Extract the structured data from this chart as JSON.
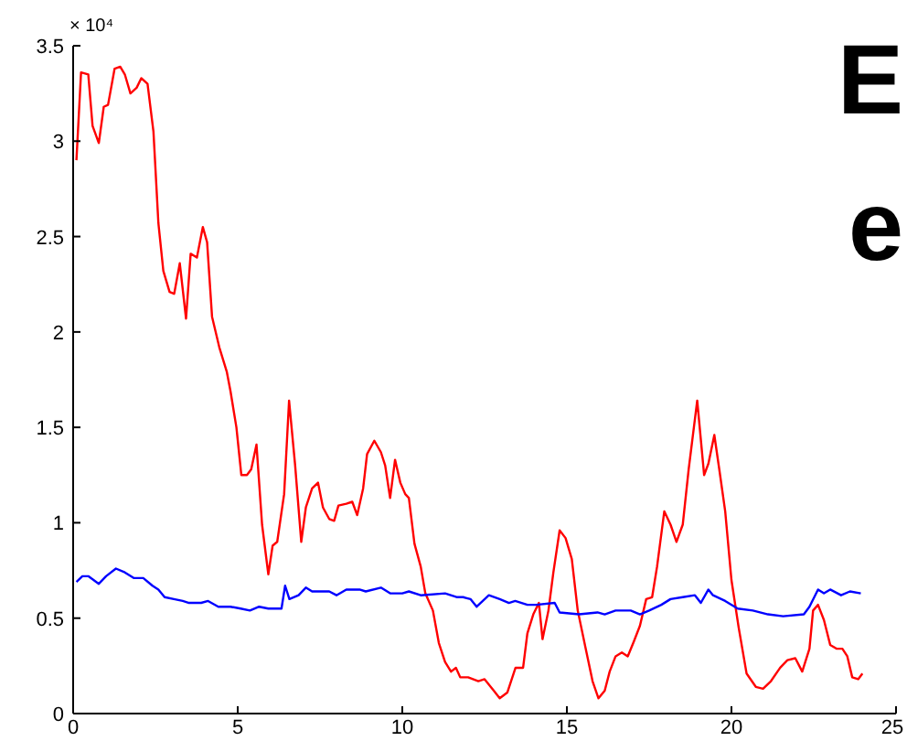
{
  "chart_data": {
    "type": "line",
    "title": "E\ne",
    "annotations": [
      "× 10⁴"
    ],
    "xlim": [
      0,
      25
    ],
    "xticks": [
      0,
      5,
      10,
      15,
      20,
      25
    ],
    "ylim": [
      0,
      3.5
    ],
    "yticks": [
      0,
      0.5,
      1,
      1.5,
      2,
      2.5,
      3,
      3.5
    ],
    "marker": "none",
    "line_style": "solid",
    "series": [
      {
        "color": "#ff0000",
        "x": [
          0.1,
          0.24,
          0.46,
          0.59,
          0.78,
          0.93,
          1.06,
          1.26,
          1.43,
          1.57,
          1.74,
          1.93,
          2.07,
          2.26,
          2.44,
          2.59,
          2.74,
          2.93,
          3.07,
          3.24,
          3.43,
          3.57,
          3.76,
          3.94,
          4.07,
          4.22,
          4.44,
          4.67,
          4.78,
          4.96,
          5.11,
          5.28,
          5.41,
          5.57,
          5.74,
          5.93,
          6.06,
          6.2,
          6.41,
          6.56,
          6.74,
          6.93,
          7.07,
          7.26,
          7.44,
          7.59,
          7.78,
          7.93,
          8.06,
          8.3,
          8.48,
          8.63,
          8.81,
          8.93,
          9.15,
          9.35,
          9.48,
          9.63,
          9.78,
          9.94,
          10.09,
          10.2,
          10.37,
          10.56,
          10.7,
          10.93,
          11.11,
          11.3,
          11.48,
          11.63,
          11.76,
          12.0,
          12.31,
          12.5,
          12.78,
          12.96,
          13.19,
          13.44,
          13.67,
          13.8,
          13.98,
          14.15,
          14.26,
          14.44,
          14.59,
          14.78,
          14.96,
          15.15,
          15.33,
          15.56,
          15.78,
          15.96,
          16.15,
          16.3,
          16.48,
          16.67,
          16.85,
          17.04,
          17.22,
          17.41,
          17.59,
          17.74,
          17.96,
          18.15,
          18.33,
          18.52,
          18.7,
          18.96,
          19.17,
          19.3,
          19.48,
          19.63,
          19.81,
          20.0,
          20.22,
          20.46,
          20.74,
          20.96,
          21.2,
          21.48,
          21.7,
          21.94,
          22.15,
          22.37,
          22.48,
          22.63,
          22.81,
          23.0,
          23.19,
          23.37,
          23.52,
          23.67,
          23.85,
          23.98
        ],
        "values": [
          2.9,
          3.36,
          3.35,
          3.08,
          2.99,
          3.18,
          3.19,
          3.38,
          3.39,
          3.35,
          3.25,
          3.28,
          3.33,
          3.3,
          3.05,
          2.57,
          2.32,
          2.21,
          2.2,
          2.36,
          2.07,
          2.41,
          2.39,
          2.55,
          2.47,
          2.08,
          1.92,
          1.79,
          1.69,
          1.5,
          1.25,
          1.25,
          1.28,
          1.41,
          0.99,
          0.73,
          0.88,
          0.9,
          1.15,
          1.64,
          1.31,
          0.9,
          1.08,
          1.18,
          1.21,
          1.08,
          1.02,
          1.01,
          1.09,
          1.1,
          1.11,
          1.04,
          1.18,
          1.36,
          1.43,
          1.37,
          1.3,
          1.13,
          1.33,
          1.21,
          1.15,
          1.13,
          0.89,
          0.77,
          0.63,
          0.54,
          0.37,
          0.27,
          0.22,
          0.24,
          0.19,
          0.19,
          0.17,
          0.18,
          0.12,
          0.08,
          0.11,
          0.24,
          0.24,
          0.42,
          0.52,
          0.58,
          0.39,
          0.54,
          0.74,
          0.96,
          0.92,
          0.81,
          0.54,
          0.35,
          0.17,
          0.08,
          0.12,
          0.22,
          0.3,
          0.32,
          0.3,
          0.38,
          0.46,
          0.6,
          0.61,
          0.77,
          1.06,
          0.99,
          0.9,
          0.99,
          1.28,
          1.64,
          1.25,
          1.31,
          1.46,
          1.28,
          1.06,
          0.7,
          0.45,
          0.21,
          0.14,
          0.13,
          0.17,
          0.24,
          0.28,
          0.29,
          0.22,
          0.34,
          0.54,
          0.57,
          0.49,
          0.36,
          0.34,
          0.34,
          0.3,
          0.19,
          0.18,
          0.21
        ]
      },
      {
        "color": "#0000ff",
        "x": [
          0.1,
          0.28,
          0.46,
          0.78,
          1.0,
          1.3,
          1.57,
          1.85,
          2.13,
          2.41,
          2.59,
          2.78,
          3.06,
          3.33,
          3.52,
          3.89,
          4.1,
          4.41,
          4.78,
          5.09,
          5.37,
          5.65,
          5.93,
          6.2,
          6.33,
          6.44,
          6.57,
          6.85,
          7.07,
          7.26,
          7.78,
          8.0,
          8.3,
          8.7,
          8.89,
          9.35,
          9.63,
          10.0,
          10.2,
          10.56,
          11.3,
          11.67,
          11.85,
          12.07,
          12.26,
          12.63,
          12.96,
          13.24,
          13.43,
          13.8,
          14.07,
          14.63,
          14.78,
          15.37,
          15.93,
          16.15,
          16.48,
          16.94,
          17.22,
          17.5,
          17.87,
          18.15,
          18.52,
          18.89,
          19.07,
          19.3,
          19.44,
          19.81,
          20.19,
          20.65,
          21.11,
          21.57,
          22.2,
          22.37,
          22.63,
          22.81,
          23.0,
          23.33,
          23.6,
          23.93
        ],
        "values": [
          0.69,
          0.72,
          0.72,
          0.68,
          0.72,
          0.76,
          0.74,
          0.71,
          0.71,
          0.67,
          0.65,
          0.61,
          0.6,
          0.59,
          0.58,
          0.58,
          0.59,
          0.56,
          0.56,
          0.55,
          0.54,
          0.56,
          0.55,
          0.55,
          0.55,
          0.67,
          0.6,
          0.62,
          0.66,
          0.64,
          0.64,
          0.62,
          0.65,
          0.65,
          0.64,
          0.66,
          0.63,
          0.63,
          0.64,
          0.62,
          0.63,
          0.61,
          0.61,
          0.6,
          0.56,
          0.62,
          0.6,
          0.58,
          0.59,
          0.57,
          0.57,
          0.58,
          0.53,
          0.52,
          0.53,
          0.52,
          0.54,
          0.54,
          0.52,
          0.54,
          0.57,
          0.6,
          0.61,
          0.62,
          0.58,
          0.65,
          0.62,
          0.59,
          0.55,
          0.54,
          0.52,
          0.51,
          0.52,
          0.56,
          0.65,
          0.63,
          0.65,
          0.62,
          0.64,
          0.63
        ]
      }
    ]
  }
}
